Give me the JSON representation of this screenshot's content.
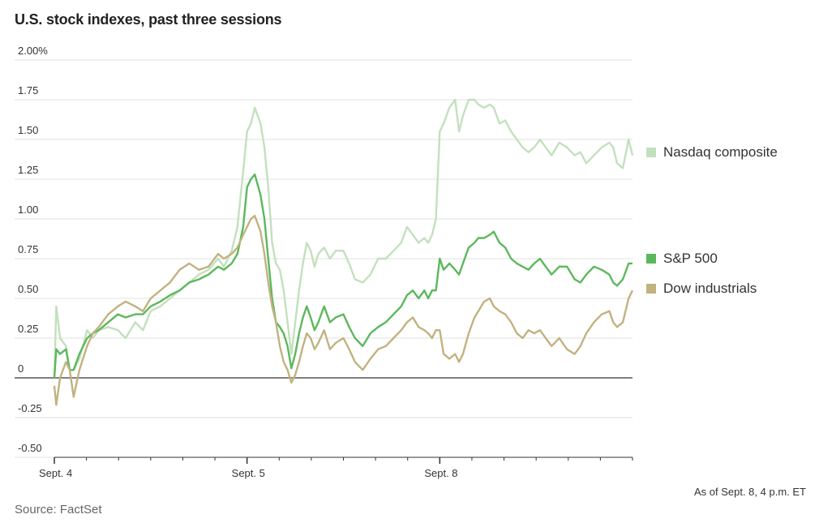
{
  "title": "U.S. stock indexes, past three sessions",
  "note": "As of Sept. 8, 4 p.m. ET",
  "source": "Source: FactSet",
  "chart_data": {
    "type": "line",
    "title": "U.S. stock indexes, past three sessions",
    "xlabel": "",
    "ylabel": "",
    "ylim": [
      -0.5,
      2.0
    ],
    "yticks": [
      2.0,
      1.75,
      1.5,
      1.25,
      1.0,
      0.75,
      0.5,
      0.25,
      0,
      -0.25,
      -0.5
    ],
    "ytick_labels": [
      "2.00%",
      "1.75",
      "1.50",
      "1.25",
      "1.00",
      "0.75",
      "0.50",
      "0.25",
      "0",
      "-0.25",
      "-0.50"
    ],
    "x_range": [
      0,
      3
    ],
    "x_ticks": [
      {
        "x": 0,
        "label": "Sept. 4"
      },
      {
        "x": 1,
        "label": "Sept. 5"
      },
      {
        "x": 2,
        "label": "Sept. 8"
      }
    ],
    "grid": true,
    "legend_position": "right",
    "series": [
      {
        "name": "Nasdaq composite",
        "color": "#c3e0bd",
        "points": [
          [
            0,
            0.0
          ],
          [
            0.01,
            0.45
          ],
          [
            0.03,
            0.25
          ],
          [
            0.06,
            0.2
          ],
          [
            0.08,
            0.05
          ],
          [
            0.1,
            0.05
          ],
          [
            0.13,
            0.12
          ],
          [
            0.17,
            0.3
          ],
          [
            0.2,
            0.25
          ],
          [
            0.23,
            0.3
          ],
          [
            0.28,
            0.32
          ],
          [
            0.33,
            0.3
          ],
          [
            0.37,
            0.25
          ],
          [
            0.42,
            0.35
          ],
          [
            0.46,
            0.3
          ],
          [
            0.5,
            0.42
          ],
          [
            0.55,
            0.45
          ],
          [
            0.6,
            0.5
          ],
          [
            0.65,
            0.55
          ],
          [
            0.7,
            0.6
          ],
          [
            0.75,
            0.65
          ],
          [
            0.8,
            0.68
          ],
          [
            0.85,
            0.75
          ],
          [
            0.88,
            0.7
          ],
          [
            0.92,
            0.8
          ],
          [
            0.95,
            0.95
          ],
          [
            0.98,
            1.3
          ],
          [
            1.0,
            1.55
          ],
          [
            1.02,
            1.6
          ],
          [
            1.04,
            1.7
          ],
          [
            1.07,
            1.6
          ],
          [
            1.09,
            1.45
          ],
          [
            1.11,
            1.2
          ],
          [
            1.13,
            0.85
          ],
          [
            1.15,
            0.72
          ],
          [
            1.17,
            0.68
          ],
          [
            1.19,
            0.55
          ],
          [
            1.21,
            0.35
          ],
          [
            1.23,
            0.15
          ],
          [
            1.25,
            0.35
          ],
          [
            1.27,
            0.55
          ],
          [
            1.29,
            0.72
          ],
          [
            1.31,
            0.85
          ],
          [
            1.33,
            0.8
          ],
          [
            1.35,
            0.7
          ],
          [
            1.37,
            0.78
          ],
          [
            1.4,
            0.82
          ],
          [
            1.43,
            0.75
          ],
          [
            1.46,
            0.8
          ],
          [
            1.5,
            0.8
          ],
          [
            1.53,
            0.72
          ],
          [
            1.56,
            0.62
          ],
          [
            1.6,
            0.6
          ],
          [
            1.64,
            0.65
          ],
          [
            1.68,
            0.75
          ],
          [
            1.72,
            0.75
          ],
          [
            1.76,
            0.8
          ],
          [
            1.8,
            0.85
          ],
          [
            1.83,
            0.95
          ],
          [
            1.86,
            0.9
          ],
          [
            1.89,
            0.85
          ],
          [
            1.92,
            0.88
          ],
          [
            1.94,
            0.85
          ],
          [
            1.96,
            0.9
          ],
          [
            1.98,
            1.0
          ],
          [
            2.0,
            1.55
          ],
          [
            2.02,
            1.6
          ],
          [
            2.05,
            1.7
          ],
          [
            2.08,
            1.75
          ],
          [
            2.1,
            1.55
          ],
          [
            2.12,
            1.65
          ],
          [
            2.15,
            1.75
          ],
          [
            2.18,
            1.75
          ],
          [
            2.2,
            1.72
          ],
          [
            2.23,
            1.7
          ],
          [
            2.26,
            1.72
          ],
          [
            2.28,
            1.7
          ],
          [
            2.31,
            1.6
          ],
          [
            2.34,
            1.62
          ],
          [
            2.37,
            1.55
          ],
          [
            2.4,
            1.5
          ],
          [
            2.43,
            1.45
          ],
          [
            2.46,
            1.42
          ],
          [
            2.49,
            1.45
          ],
          [
            2.52,
            1.5
          ],
          [
            2.55,
            1.45
          ],
          [
            2.58,
            1.4
          ],
          [
            2.62,
            1.48
          ],
          [
            2.66,
            1.45
          ],
          [
            2.7,
            1.4
          ],
          [
            2.73,
            1.42
          ],
          [
            2.76,
            1.35
          ],
          [
            2.8,
            1.4
          ],
          [
            2.84,
            1.45
          ],
          [
            2.88,
            1.48
          ],
          [
            2.9,
            1.45
          ],
          [
            2.92,
            1.35
          ],
          [
            2.95,
            1.32
          ],
          [
            2.98,
            1.5
          ],
          [
            3.0,
            1.4
          ]
        ]
      },
      {
        "name": "S&P 500",
        "color": "#5cb85c",
        "points": [
          [
            0,
            0.0
          ],
          [
            0.01,
            0.18
          ],
          [
            0.03,
            0.15
          ],
          [
            0.06,
            0.18
          ],
          [
            0.08,
            0.05
          ],
          [
            0.1,
            0.05
          ],
          [
            0.13,
            0.15
          ],
          [
            0.17,
            0.25
          ],
          [
            0.2,
            0.28
          ],
          [
            0.23,
            0.3
          ],
          [
            0.28,
            0.35
          ],
          [
            0.33,
            0.4
          ],
          [
            0.37,
            0.38
          ],
          [
            0.42,
            0.4
          ],
          [
            0.46,
            0.4
          ],
          [
            0.5,
            0.45
          ],
          [
            0.55,
            0.48
          ],
          [
            0.6,
            0.52
          ],
          [
            0.65,
            0.55
          ],
          [
            0.7,
            0.6
          ],
          [
            0.75,
            0.62
          ],
          [
            0.8,
            0.65
          ],
          [
            0.85,
            0.7
          ],
          [
            0.88,
            0.68
          ],
          [
            0.92,
            0.72
          ],
          [
            0.95,
            0.78
          ],
          [
            0.98,
            0.95
          ],
          [
            1.0,
            1.2
          ],
          [
            1.02,
            1.25
          ],
          [
            1.04,
            1.28
          ],
          [
            1.07,
            1.15
          ],
          [
            1.09,
            1.0
          ],
          [
            1.11,
            0.75
          ],
          [
            1.13,
            0.5
          ],
          [
            1.15,
            0.35
          ],
          [
            1.17,
            0.32
          ],
          [
            1.19,
            0.28
          ],
          [
            1.21,
            0.2
          ],
          [
            1.23,
            0.06
          ],
          [
            1.25,
            0.15
          ],
          [
            1.27,
            0.28
          ],
          [
            1.29,
            0.38
          ],
          [
            1.31,
            0.45
          ],
          [
            1.33,
            0.38
          ],
          [
            1.35,
            0.3
          ],
          [
            1.37,
            0.35
          ],
          [
            1.4,
            0.45
          ],
          [
            1.43,
            0.35
          ],
          [
            1.46,
            0.38
          ],
          [
            1.5,
            0.4
          ],
          [
            1.53,
            0.32
          ],
          [
            1.56,
            0.25
          ],
          [
            1.6,
            0.2
          ],
          [
            1.64,
            0.28
          ],
          [
            1.68,
            0.32
          ],
          [
            1.72,
            0.35
          ],
          [
            1.76,
            0.4
          ],
          [
            1.8,
            0.45
          ],
          [
            1.83,
            0.52
          ],
          [
            1.86,
            0.55
          ],
          [
            1.89,
            0.5
          ],
          [
            1.92,
            0.55
          ],
          [
            1.94,
            0.5
          ],
          [
            1.96,
            0.55
          ],
          [
            1.98,
            0.55
          ],
          [
            2.0,
            0.75
          ],
          [
            2.02,
            0.68
          ],
          [
            2.05,
            0.72
          ],
          [
            2.08,
            0.68
          ],
          [
            2.1,
            0.65
          ],
          [
            2.12,
            0.72
          ],
          [
            2.15,
            0.82
          ],
          [
            2.18,
            0.85
          ],
          [
            2.2,
            0.88
          ],
          [
            2.23,
            0.88
          ],
          [
            2.26,
            0.9
          ],
          [
            2.28,
            0.92
          ],
          [
            2.31,
            0.85
          ],
          [
            2.34,
            0.82
          ],
          [
            2.37,
            0.75
          ],
          [
            2.4,
            0.72
          ],
          [
            2.43,
            0.7
          ],
          [
            2.46,
            0.68
          ],
          [
            2.49,
            0.72
          ],
          [
            2.52,
            0.75
          ],
          [
            2.55,
            0.7
          ],
          [
            2.58,
            0.65
          ],
          [
            2.62,
            0.7
          ],
          [
            2.66,
            0.7
          ],
          [
            2.7,
            0.62
          ],
          [
            2.73,
            0.6
          ],
          [
            2.76,
            0.65
          ],
          [
            2.8,
            0.7
          ],
          [
            2.84,
            0.68
          ],
          [
            2.88,
            0.65
          ],
          [
            2.9,
            0.6
          ],
          [
            2.92,
            0.58
          ],
          [
            2.95,
            0.62
          ],
          [
            2.98,
            0.72
          ],
          [
            3.0,
            0.72
          ]
        ]
      },
      {
        "name": "Dow industrials",
        "color": "#c2b280",
        "points": [
          [
            0,
            -0.05
          ],
          [
            0.01,
            -0.17
          ],
          [
            0.03,
            0.0
          ],
          [
            0.06,
            0.1
          ],
          [
            0.08,
            0.05
          ],
          [
            0.1,
            -0.12
          ],
          [
            0.13,
            0.05
          ],
          [
            0.17,
            0.2
          ],
          [
            0.2,
            0.28
          ],
          [
            0.23,
            0.32
          ],
          [
            0.28,
            0.4
          ],
          [
            0.33,
            0.45
          ],
          [
            0.37,
            0.48
          ],
          [
            0.42,
            0.45
          ],
          [
            0.46,
            0.42
          ],
          [
            0.5,
            0.5
          ],
          [
            0.55,
            0.55
          ],
          [
            0.6,
            0.6
          ],
          [
            0.65,
            0.68
          ],
          [
            0.7,
            0.72
          ],
          [
            0.75,
            0.68
          ],
          [
            0.8,
            0.7
          ],
          [
            0.85,
            0.78
          ],
          [
            0.88,
            0.75
          ],
          [
            0.92,
            0.78
          ],
          [
            0.95,
            0.82
          ],
          [
            0.98,
            0.9
          ],
          [
            1.0,
            0.95
          ],
          [
            1.02,
            1.0
          ],
          [
            1.04,
            1.02
          ],
          [
            1.07,
            0.92
          ],
          [
            1.09,
            0.78
          ],
          [
            1.11,
            0.6
          ],
          [
            1.13,
            0.45
          ],
          [
            1.15,
            0.35
          ],
          [
            1.17,
            0.2
          ],
          [
            1.19,
            0.1
          ],
          [
            1.21,
            0.05
          ],
          [
            1.23,
            -0.03
          ],
          [
            1.25,
            0.02
          ],
          [
            1.27,
            0.1
          ],
          [
            1.29,
            0.2
          ],
          [
            1.31,
            0.28
          ],
          [
            1.33,
            0.25
          ],
          [
            1.35,
            0.18
          ],
          [
            1.37,
            0.22
          ],
          [
            1.4,
            0.3
          ],
          [
            1.43,
            0.18
          ],
          [
            1.46,
            0.22
          ],
          [
            1.5,
            0.25
          ],
          [
            1.53,
            0.18
          ],
          [
            1.56,
            0.1
          ],
          [
            1.6,
            0.05
          ],
          [
            1.64,
            0.12
          ],
          [
            1.68,
            0.18
          ],
          [
            1.72,
            0.2
          ],
          [
            1.76,
            0.25
          ],
          [
            1.8,
            0.3
          ],
          [
            1.83,
            0.35
          ],
          [
            1.86,
            0.38
          ],
          [
            1.89,
            0.32
          ],
          [
            1.92,
            0.3
          ],
          [
            1.94,
            0.28
          ],
          [
            1.96,
            0.25
          ],
          [
            1.98,
            0.3
          ],
          [
            2.0,
            0.3
          ],
          [
            2.02,
            0.15
          ],
          [
            2.05,
            0.12
          ],
          [
            2.08,
            0.15
          ],
          [
            2.1,
            0.1
          ],
          [
            2.12,
            0.15
          ],
          [
            2.15,
            0.28
          ],
          [
            2.18,
            0.38
          ],
          [
            2.2,
            0.42
          ],
          [
            2.23,
            0.48
          ],
          [
            2.26,
            0.5
          ],
          [
            2.28,
            0.45
          ],
          [
            2.31,
            0.42
          ],
          [
            2.34,
            0.4
          ],
          [
            2.37,
            0.35
          ],
          [
            2.4,
            0.28
          ],
          [
            2.43,
            0.25
          ],
          [
            2.46,
            0.3
          ],
          [
            2.49,
            0.28
          ],
          [
            2.52,
            0.3
          ],
          [
            2.55,
            0.25
          ],
          [
            2.58,
            0.2
          ],
          [
            2.62,
            0.25
          ],
          [
            2.66,
            0.18
          ],
          [
            2.7,
            0.15
          ],
          [
            2.73,
            0.2
          ],
          [
            2.76,
            0.28
          ],
          [
            2.8,
            0.35
          ],
          [
            2.84,
            0.4
          ],
          [
            2.88,
            0.42
          ],
          [
            2.9,
            0.35
          ],
          [
            2.92,
            0.32
          ],
          [
            2.95,
            0.35
          ],
          [
            2.98,
            0.5
          ],
          [
            3.0,
            0.55
          ]
        ]
      }
    ]
  }
}
